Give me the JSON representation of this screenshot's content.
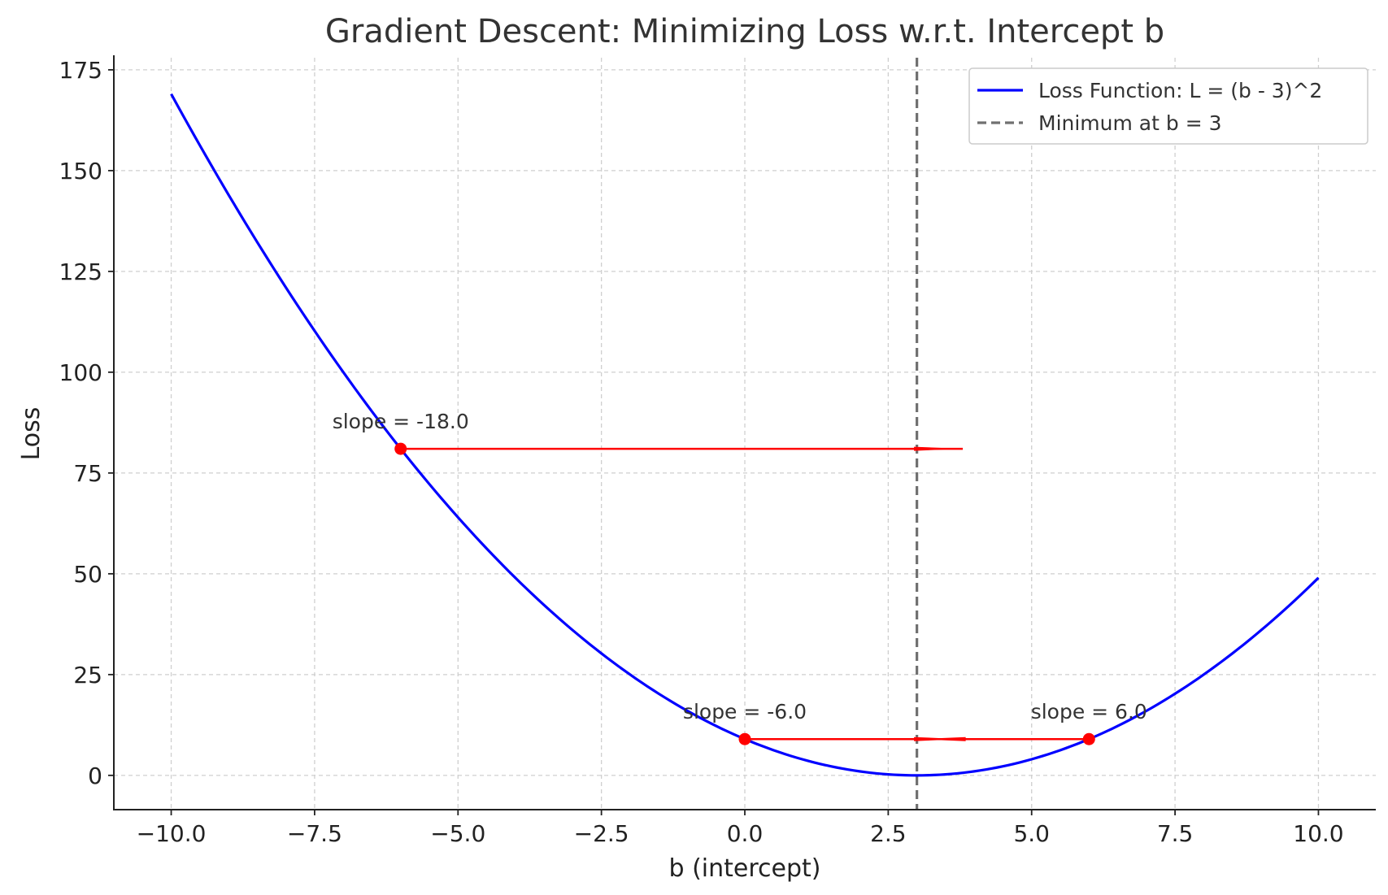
{
  "chart_data": {
    "type": "line",
    "title": "Gradient Descent: Minimizing Loss w.r.t. Intercept b",
    "xlabel": "b (intercept)",
    "ylabel": "Loss",
    "xlim": [
      -11,
      11
    ],
    "ylim": [
      -8.5,
      178
    ],
    "xticks": [
      -10,
      -7.5,
      -5,
      -2.5,
      0,
      2.5,
      5,
      7.5,
      10
    ],
    "xtick_labels": [
      "−10.0",
      "−7.5",
      "−5.0",
      "−2.5",
      "0.0",
      "2.5",
      "5.0",
      "7.5",
      "10.0"
    ],
    "yticks": [
      0,
      25,
      50,
      75,
      100,
      125,
      150,
      175
    ],
    "ytick_labels": [
      "0",
      "25",
      "50",
      "75",
      "100",
      "125",
      "150",
      "175"
    ],
    "grid": true,
    "legend_position": "top-right",
    "series": [
      {
        "name": "Loss Function: L = (b - 3)^2",
        "color": "#0000ff",
        "function": "(b - 3)^2",
        "x_range": [
          -10,
          10
        ]
      }
    ],
    "reference_lines": [
      {
        "name": "Minimum at b = 3",
        "orientation": "vertical",
        "x": 3,
        "color": "#707070",
        "style": "dashed"
      }
    ],
    "points": [
      {
        "x": -6,
        "y": 81,
        "label": "slope = -18.0",
        "arrow_to_x": 3.8
      },
      {
        "x": 0,
        "y": 9,
        "label": "slope = -6.0",
        "arrow_to_x": 3.8
      },
      {
        "x": 6,
        "y": 9,
        "label": "slope = 6.0",
        "arrow_to_x": 3.0
      }
    ],
    "point_color": "#ff0000"
  }
}
